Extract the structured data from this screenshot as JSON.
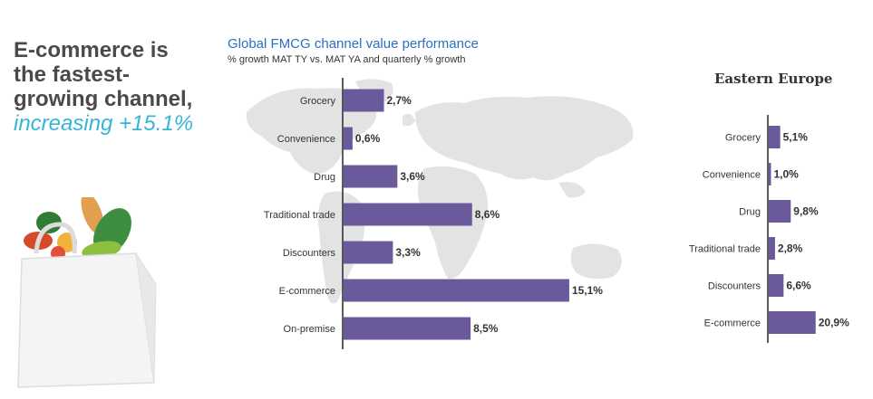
{
  "headline": {
    "line1": "E-commerce is",
    "line2": "the fastest-",
    "line3": "growing channel,",
    "line4": "increasing +15.1%"
  },
  "colors": {
    "bar": "#6a5a9c",
    "headline_text": "#4a4a4a",
    "headline_accent": "#36b5d8",
    "title_blue": "#2a6fc4",
    "map": "#e3e3e3"
  },
  "illustration": {
    "icon": "grocery-bag-icon"
  },
  "chart_data": [
    {
      "type": "bar",
      "orientation": "horizontal",
      "title": "Global FMCG channel value performance",
      "subtitle": "% growth MAT TY vs. MAT YA and quarterly % growth",
      "categories": [
        "Grocery",
        "Convenience",
        "Drug",
        "Traditional trade",
        "Discounters",
        "E-commerce",
        "On-premise"
      ],
      "values": [
        2.7,
        0.6,
        3.6,
        8.6,
        3.3,
        15.1,
        8.5
      ],
      "value_labels": [
        "2,7%",
        "0,6%",
        "3,6%",
        "8,6%",
        "3,3%",
        "15,1%",
        "8,5%"
      ],
      "xlim": [
        0,
        16.5
      ],
      "background": "world-map"
    },
    {
      "type": "bar",
      "orientation": "horizontal",
      "title": "Eastern Europe",
      "categories": [
        "Grocery",
        "Convenience",
        "Drug",
        "Traditional trade",
        "Discounters",
        "E-commerce"
      ],
      "values": [
        5.1,
        1.0,
        9.8,
        2.8,
        6.6,
        20.9
      ],
      "value_labels": [
        "5,1%",
        "1,0%",
        "9,8%",
        "2,8%",
        "6,6%",
        "20,9%"
      ],
      "xlim": [
        0,
        21
      ]
    }
  ]
}
